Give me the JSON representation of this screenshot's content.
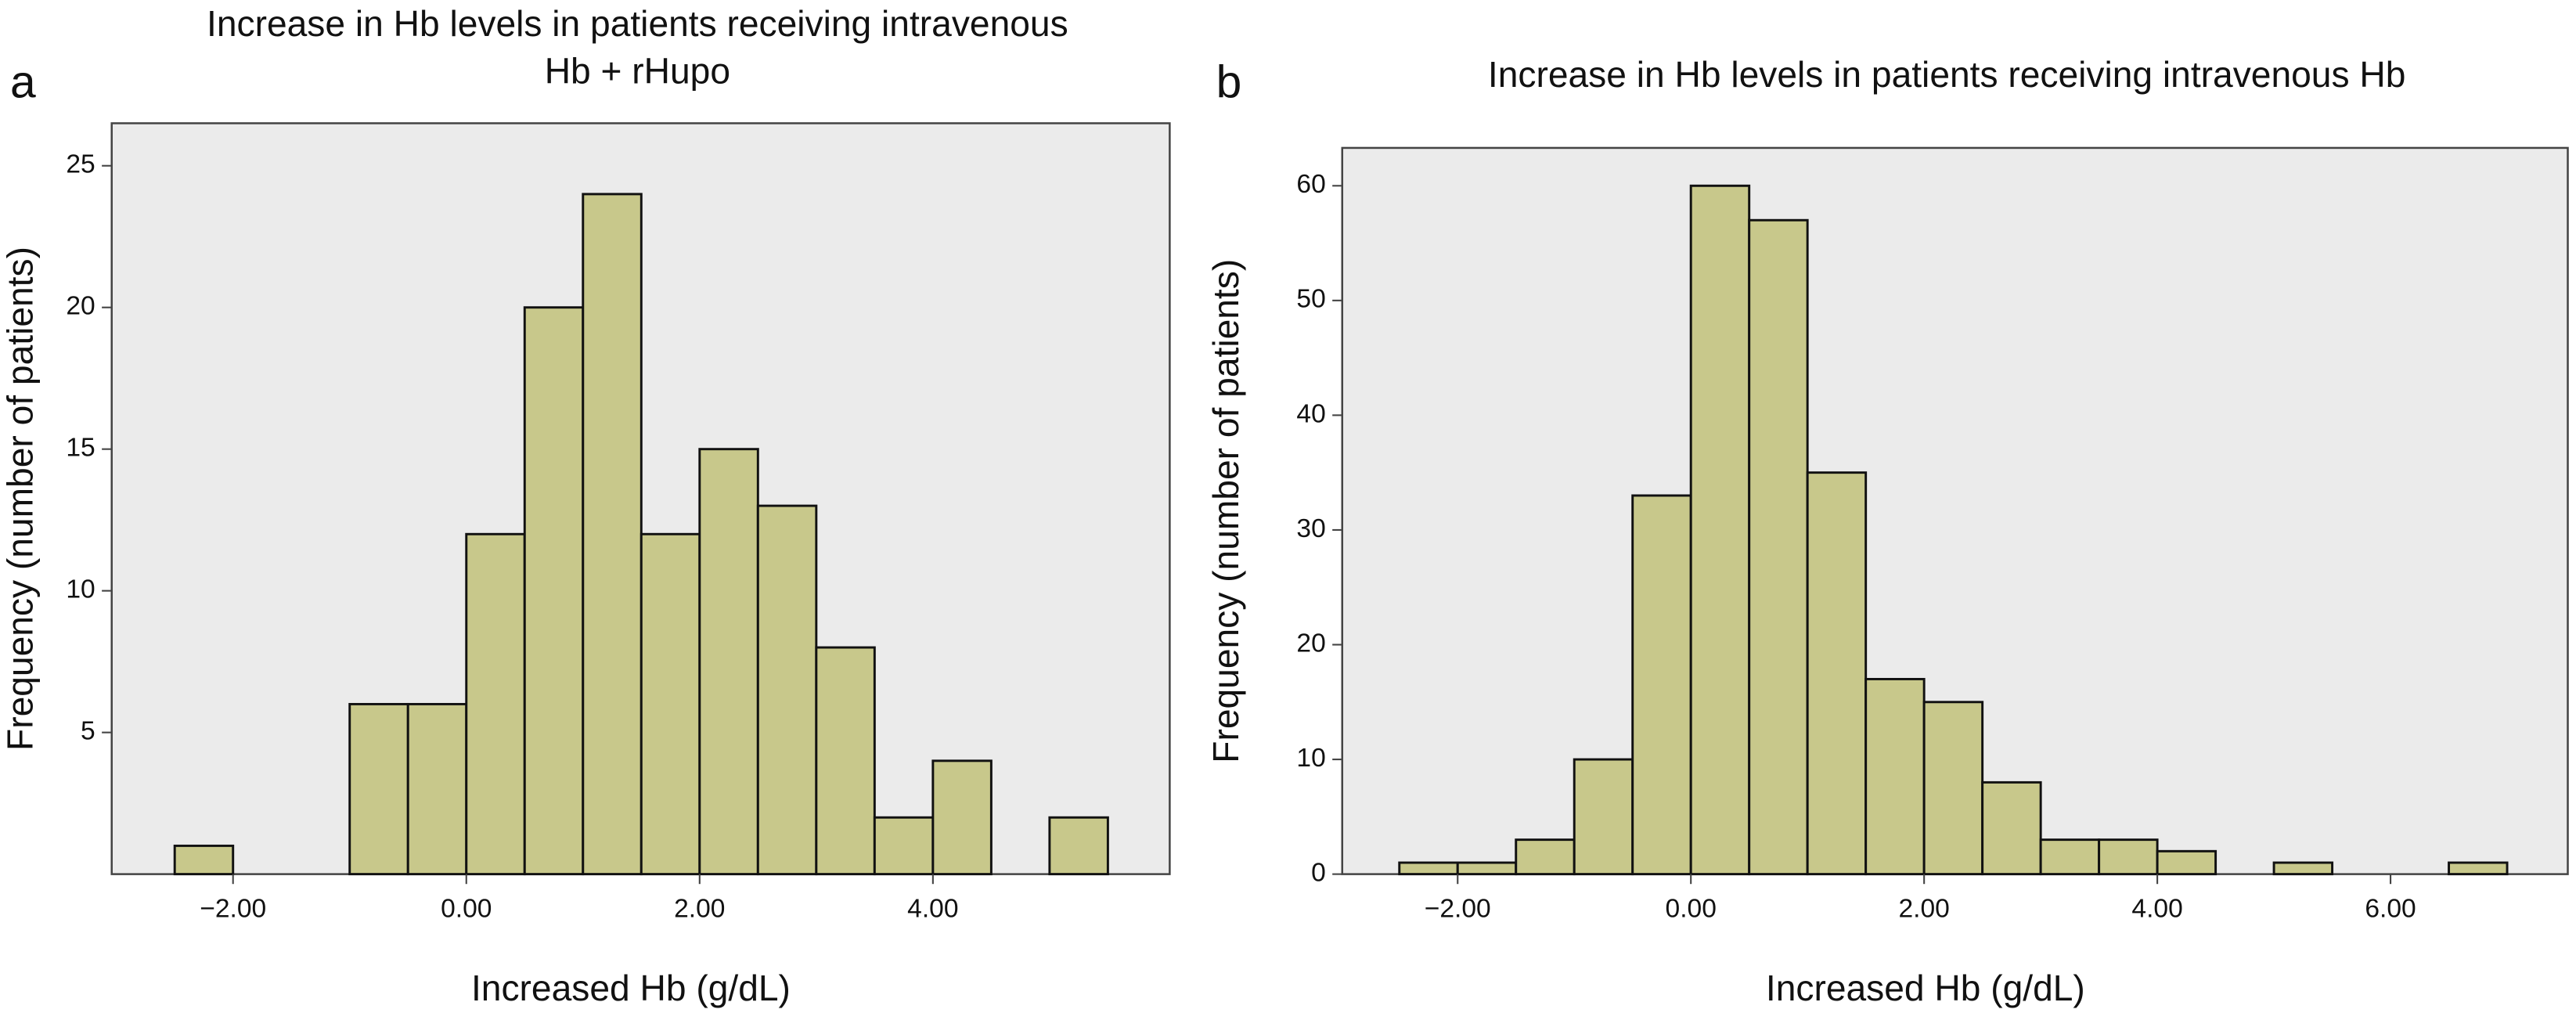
{
  "chart_data": [
    {
      "type": "histogram",
      "panel_label": "a",
      "title": [
        "Increase in Hb levels in patients receiving intravenous",
        "Hb + rHupo"
      ],
      "x_label": "Increased Hb (g/dL)",
      "y_label": "Frequency (number of patients)",
      "bins": [
        -2.5,
        -2.0,
        -1.5,
        -1.0,
        -0.5,
        0,
        0.5,
        1.0,
        1.5,
        2.0,
        2.5,
        3.0,
        3.5,
        4.0,
        4.5,
        5.0,
        5.5
      ],
      "values": [
        1,
        0,
        0,
        6,
        6,
        12,
        20,
        24,
        12,
        15,
        13,
        8,
        2,
        4,
        0,
        2
      ],
      "color": "#c8c88b",
      "xlim": [
        -3.04,
        6.03
      ],
      "xticks": [
        {
          "value": -2,
          "label": "−2.00"
        },
        {
          "value": 0,
          "label": "0.00"
        },
        {
          "value": 2,
          "label": "2.00"
        },
        {
          "value": 4,
          "label": "4.00"
        }
      ],
      "ylim": [
        0,
        26.5
      ],
      "yticks": [
        5,
        10,
        15,
        20,
        25
      ]
    },
    {
      "type": "histogram",
      "panel_label": "b",
      "title": [
        "Increase in Hb levels in patients receiving intravenous Hb"
      ],
      "x_label": "Increased Hb (g/dL)",
      "y_label": "Frequency (number of patients)",
      "bins": [
        -2.5,
        -2.0,
        -1.5,
        -1.0,
        -0.5,
        0,
        0.5,
        1.0,
        1.5,
        2.0,
        2.5,
        3.0,
        3.5,
        4.0,
        4.5,
        5.0,
        5.5,
        6.0,
        6.5,
        7.0
      ],
      "values": [
        1,
        1,
        3,
        10,
        33,
        60,
        57,
        35,
        17,
        15,
        8,
        3,
        3,
        2,
        0,
        1,
        0,
        0,
        1
      ],
      "color": "#c8c88b",
      "xlim": [
        -2.99,
        7.52
      ],
      "xticks": [
        {
          "value": -2,
          "label": "−2.00"
        },
        {
          "value": 0,
          "label": "0.00"
        },
        {
          "value": 2,
          "label": "2.00"
        },
        {
          "value": 4,
          "label": "4.00"
        },
        {
          "value": 6,
          "label": "6.00"
        }
      ],
      "ylim": [
        0,
        63.3
      ],
      "yticks": [
        0,
        10,
        20,
        30,
        40,
        50,
        60
      ]
    }
  ]
}
